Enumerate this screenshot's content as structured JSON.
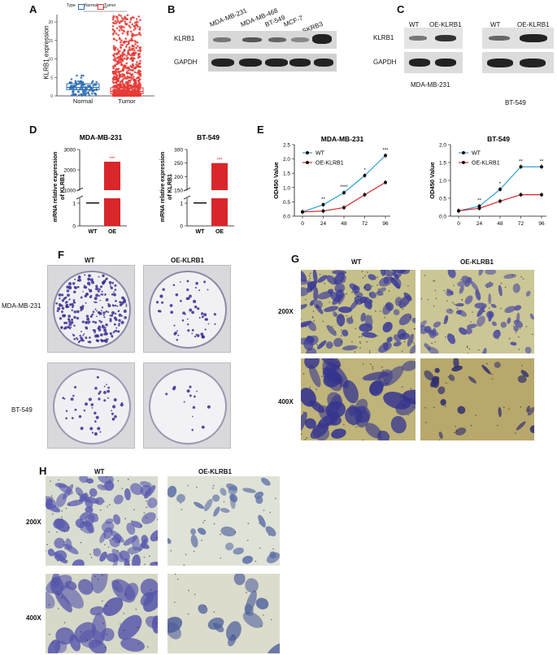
{
  "panels": {
    "A": "A",
    "B": "B",
    "C": "C",
    "D": "D",
    "E": "E",
    "F": "F",
    "G": "G",
    "H": "H"
  },
  "panelA": {
    "legend_title": "Type",
    "legend_normal": "Normal",
    "legend_tumor": "Tumor",
    "ylabel": "KLRB1 expression",
    "significance": "***",
    "chart_data": {
      "type": "box",
      "categories": [
        "Normal",
        "Tumor"
      ],
      "yticks": [
        0,
        5,
        10,
        15,
        20
      ],
      "ylim": [
        0,
        22
      ],
      "series": [
        {
          "name": "Normal",
          "color": "#2b6cb0",
          "q1": 1.7,
          "median": 2.3,
          "q3": 3.3,
          "min": 0,
          "max": 5.5
        },
        {
          "name": "Tumor",
          "color": "#e53935",
          "q1": 0.6,
          "median": 1.2,
          "q3": 2.2,
          "min": 0,
          "max": 22
        }
      ]
    }
  },
  "panelB": {
    "lanes": [
      "MDA-MB-231",
      "MDA-MB-468",
      "BT-549",
      "MCF-7",
      "SKRB3"
    ],
    "rows": [
      "KLRB1",
      "GAPDH"
    ]
  },
  "panelC": {
    "lanes": [
      "WT",
      "OE-KLRB1"
    ],
    "rows": [
      "KLRB1",
      "GAPDH"
    ],
    "cell_lines": [
      "MDA-MB-231",
      "BT-549"
    ]
  },
  "panelD": {
    "ylabel": "mRNA relative expression of KLRB1",
    "chart_data": [
      {
        "type": "bar",
        "title": "MDA-MB-231",
        "categories": [
          "WT",
          "OE"
        ],
        "values": [
          1,
          2400
        ],
        "yticks_low": [
          "0",
          "1"
        ],
        "yticks_high": [
          "1000",
          "2000",
          "3000"
        ],
        "significance": "***"
      },
      {
        "type": "bar",
        "title": "BT-549",
        "categories": [
          "WT",
          "OE"
        ],
        "values": [
          1,
          250
        ],
        "yticks_low": [
          "0",
          "1"
        ],
        "yticks_high": [
          "150",
          "200",
          "250",
          "300"
        ],
        "significance": "***"
      }
    ]
  },
  "panelE": {
    "ylabel": "OD450 Value",
    "chart_data": [
      {
        "type": "line",
        "title": "MDA-MB-231",
        "x": [
          0,
          24,
          48,
          72,
          96
        ],
        "yticks": [
          "0.0",
          "0.5",
          "1.0",
          "1.5",
          "2.0",
          "2.5"
        ],
        "ylim": [
          0,
          2.5
        ],
        "series": [
          {
            "name": "WT",
            "color": "#2ea0d6",
            "values": [
              0.15,
              0.4,
              0.82,
              1.42,
              2.12
            ]
          },
          {
            "name": "OE-KLRB1",
            "color": "#d9262a",
            "values": [
              0.15,
              0.18,
              0.3,
              0.75,
              1.18
            ]
          }
        ],
        "annotations": [
          "**",
          "****",
          "*",
          "***"
        ]
      },
      {
        "type": "line",
        "title": "BT-549",
        "x": [
          0,
          24,
          48,
          72,
          96
        ],
        "yticks": [
          "0.0",
          "0.5",
          "1.0",
          "1.5",
          "2.0"
        ],
        "ylim": [
          0,
          2.0
        ],
        "series": [
          {
            "name": "WT",
            "color": "#2ea0d6",
            "values": [
              0.15,
              0.28,
              0.75,
              1.38,
              1.38
            ]
          },
          {
            "name": "OE-KLRB1",
            "color": "#d9262a",
            "values": [
              0.15,
              0.22,
              0.42,
              0.6,
              0.6
            ]
          }
        ],
        "annotations": [
          "**",
          "*",
          "**",
          "**"
        ]
      }
    ]
  },
  "panelF": {
    "cols": [
      "WT",
      "OE-KLRB1"
    ],
    "rows": [
      "MDA-MB-231",
      "BT-549"
    ]
  },
  "panelG": {
    "cols": [
      "WT",
      "OE-KLRB1"
    ],
    "rows": [
      "200X",
      "400X"
    ]
  },
  "panelH": {
    "cols": [
      "WT",
      "OE-KLRB1"
    ],
    "rows": [
      "200X",
      "400X"
    ]
  }
}
